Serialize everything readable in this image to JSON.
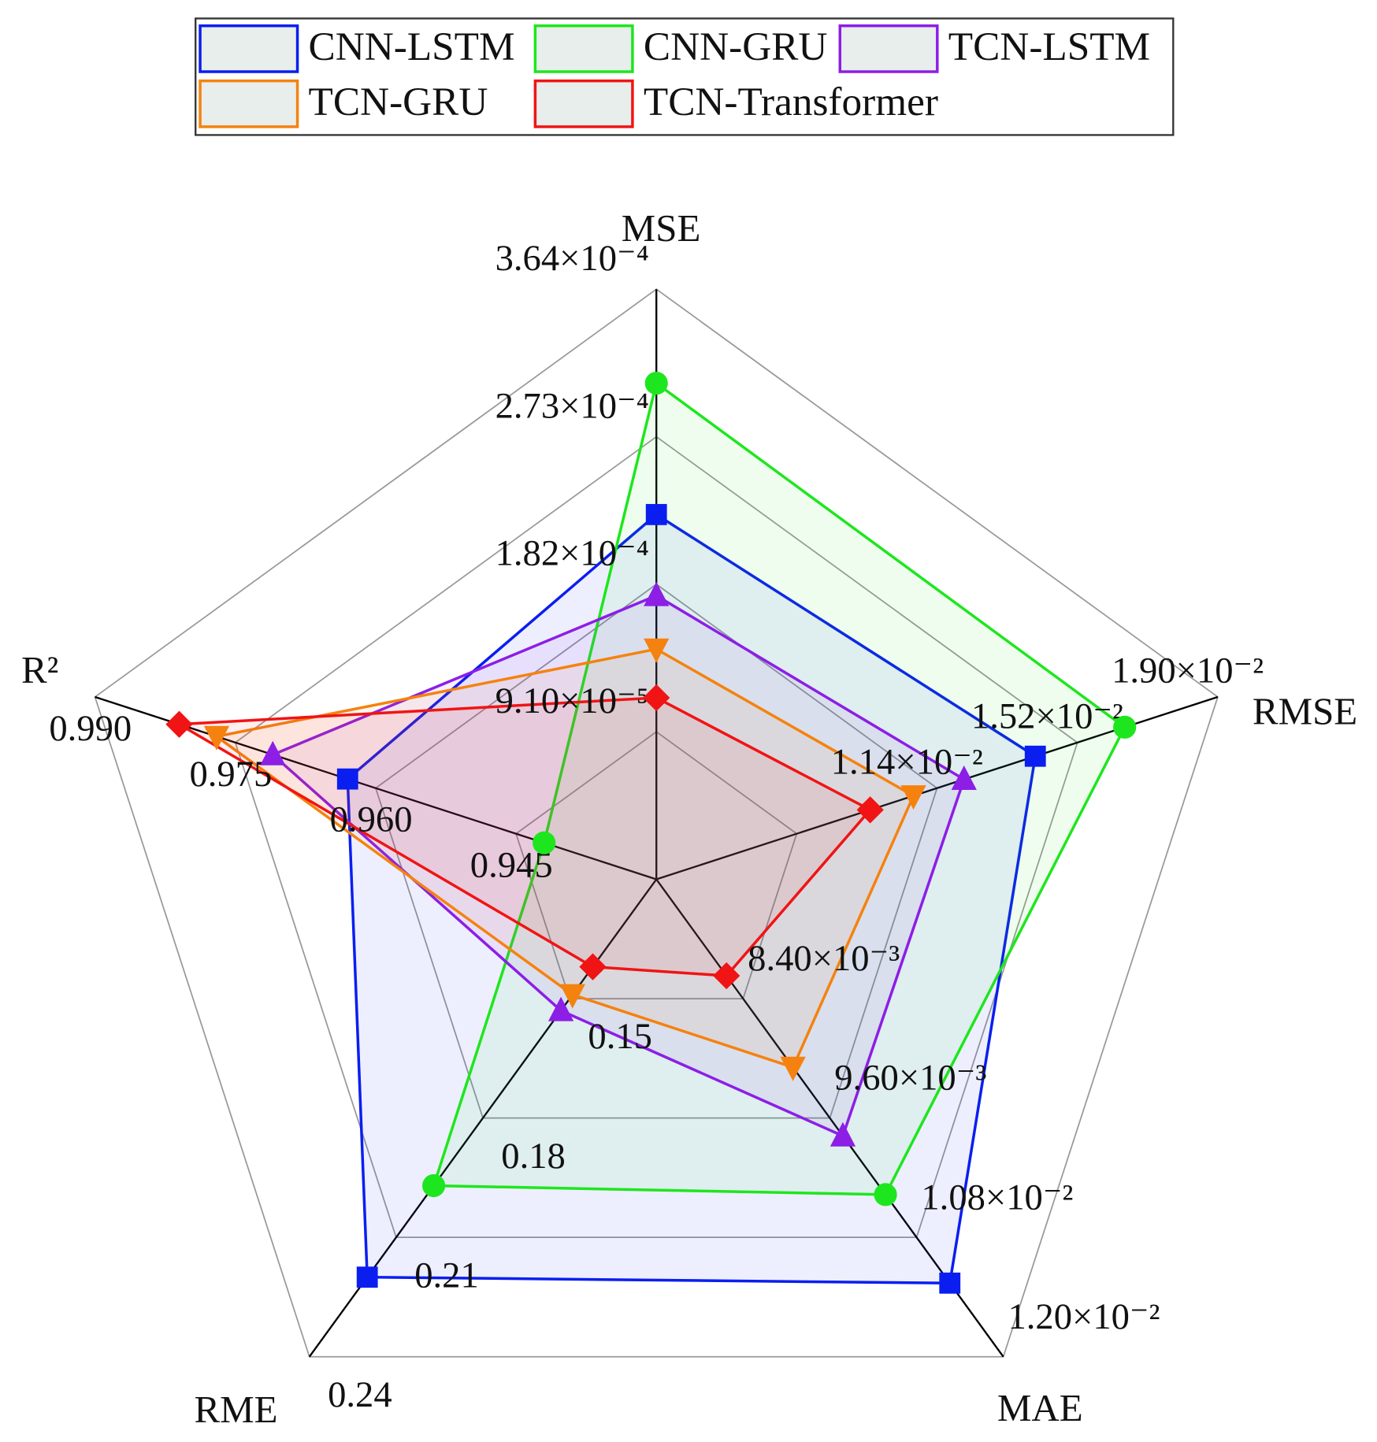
{
  "chart_data": {
    "type": "radar",
    "axes": [
      {
        "name": "MSE",
        "lim": [
          0,
          0.000364
        ],
        "ticks": [
          {
            "value": 9.1e-05,
            "label": "9.10×10⁻⁵"
          },
          {
            "value": 0.000182,
            "label": "1.82×10⁻⁴"
          },
          {
            "value": 0.000273,
            "label": "2.73×10⁻⁴"
          },
          {
            "value": 0.000364,
            "label": "3.64×10⁻⁴"
          }
        ]
      },
      {
        "name": "RMSE",
        "lim": [
          0.0038,
          0.019
        ],
        "ticks": [
          {
            "value": 0.0114,
            "label": "1.14×10⁻²"
          },
          {
            "value": 0.0152,
            "label": "1.52×10⁻²"
          },
          {
            "value": 0.019,
            "label": "1.90×10⁻²"
          }
        ]
      },
      {
        "name": "MAE",
        "lim": [
          0.0072,
          0.012
        ],
        "ticks": [
          {
            "value": 0.0084,
            "label": "8.40×10⁻³"
          },
          {
            "value": 0.0096,
            "label": "9.60×10⁻³"
          },
          {
            "value": 0.0108,
            "label": "1.08×10⁻²"
          },
          {
            "value": 0.012,
            "label": "1.20×10⁻²"
          }
        ]
      },
      {
        "name": "RME",
        "lim": [
          0.12,
          0.24
        ],
        "ticks": [
          0.15,
          0.18,
          0.21,
          0.24
        ]
      },
      {
        "name": "R²",
        "lim": [
          0.93,
          0.99
        ],
        "ticks": [
          0.945,
          {
            "value": 0.96,
            "label": "0.960"
          },
          0.975,
          {
            "value": 0.99,
            "label": "0.990"
          }
        ]
      }
    ],
    "series": [
      {
        "name": "CNN-LSTM",
        "color": "#0a1ef0",
        "marker": "square",
        "values": [
          0.000225,
          0.01406,
          0.01126,
          0.22,
          0.963
        ]
      },
      {
        "name": "CNN-GRU",
        "color": "#1ee61e",
        "marker": "circle",
        "values": [
          0.000306,
          0.01648,
          0.01037,
          0.197,
          0.942
        ]
      },
      {
        "name": "TCN-LSTM",
        "color": "#8c1ee6",
        "marker": "triangle-up",
        "values": [
          0.000175,
          0.01213,
          0.00978,
          0.153,
          0.971
        ]
      },
      {
        "name": "TCN-GRU",
        "color": "#f5820f",
        "marker": "triangle-down",
        "values": [
          0.000142,
          0.01076,
          0.00909,
          0.149,
          0.977
        ]
      },
      {
        "name": "TCN-Transformer",
        "color": "#f01414",
        "marker": "diamond",
        "values": [
          0.000112,
          0.00959,
          0.00817,
          0.142,
          0.981
        ]
      }
    ]
  }
}
